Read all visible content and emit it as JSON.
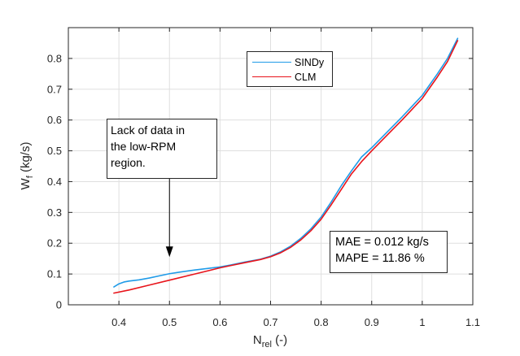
{
  "chart_data": {
    "type": "line",
    "title": "",
    "xlabel": {
      "main": "N",
      "sub": "rel",
      "suffix": " (-)"
    },
    "ylabel": {
      "main": "W",
      "sub": "f",
      "suffix": " (kg/s)"
    },
    "xlim": [
      0.3,
      1.1
    ],
    "ylim": [
      0,
      0.9
    ],
    "xticks": [
      0.4,
      0.5,
      0.6,
      0.7,
      0.8,
      0.9,
      1,
      1.1
    ],
    "xtick_labels": [
      "0.4",
      "0.5",
      "0.6",
      "0.7",
      "0.8",
      "0.9",
      "1",
      "1.1"
    ],
    "yticks": [
      0,
      0.1,
      0.2,
      0.3,
      0.4,
      0.5,
      0.6,
      0.7,
      0.8
    ],
    "ytick_labels": [
      "0",
      "0.1",
      "0.2",
      "0.3",
      "0.4",
      "0.5",
      "0.6",
      "0.7",
      "0.8"
    ],
    "grid": true,
    "legend_position": "top-center",
    "series": [
      {
        "name": "SINDy",
        "color": "#1f9be8",
        "x": [
          0.39,
          0.4,
          0.41,
          0.42,
          0.44,
          0.46,
          0.48,
          0.5,
          0.52,
          0.55,
          0.58,
          0.6,
          0.62,
          0.65,
          0.68,
          0.7,
          0.72,
          0.74,
          0.76,
          0.78,
          0.8,
          0.82,
          0.84,
          0.86,
          0.88,
          0.9,
          0.93,
          0.96,
          1.0,
          1.03,
          1.05,
          1.07
        ],
        "y": [
          0.058,
          0.068,
          0.074,
          0.077,
          0.081,
          0.087,
          0.094,
          0.101,
          0.106,
          0.113,
          0.119,
          0.123,
          0.129,
          0.139,
          0.148,
          0.158,
          0.172,
          0.191,
          0.216,
          0.247,
          0.285,
          0.334,
          0.387,
          0.435,
          0.48,
          0.51,
          0.56,
          0.61,
          0.68,
          0.75,
          0.8,
          0.865
        ]
      },
      {
        "name": "CLM",
        "color": "#e8141b",
        "x": [
          0.39,
          0.42,
          0.46,
          0.5,
          0.55,
          0.6,
          0.62,
          0.65,
          0.68,
          0.7,
          0.72,
          0.74,
          0.76,
          0.78,
          0.8,
          0.82,
          0.84,
          0.86,
          0.88,
          0.9,
          0.93,
          0.96,
          1.0,
          1.03,
          1.05,
          1.07
        ],
        "y": [
          0.038,
          0.048,
          0.064,
          0.08,
          0.1,
          0.12,
          0.127,
          0.137,
          0.147,
          0.156,
          0.169,
          0.187,
          0.211,
          0.241,
          0.278,
          0.325,
          0.375,
          0.425,
          0.465,
          0.5,
          0.55,
          0.6,
          0.67,
          0.74,
          0.79,
          0.858
        ]
      }
    ],
    "annotations": {
      "note_lines": [
        "Lack of data in",
        "the low-RPM",
        "region."
      ],
      "arrow_target": {
        "x": 0.5,
        "y": 0.155
      },
      "metrics_lines": [
        "MAE = 0.012 kg/s",
        "MAPE = 11.86 %"
      ]
    }
  }
}
